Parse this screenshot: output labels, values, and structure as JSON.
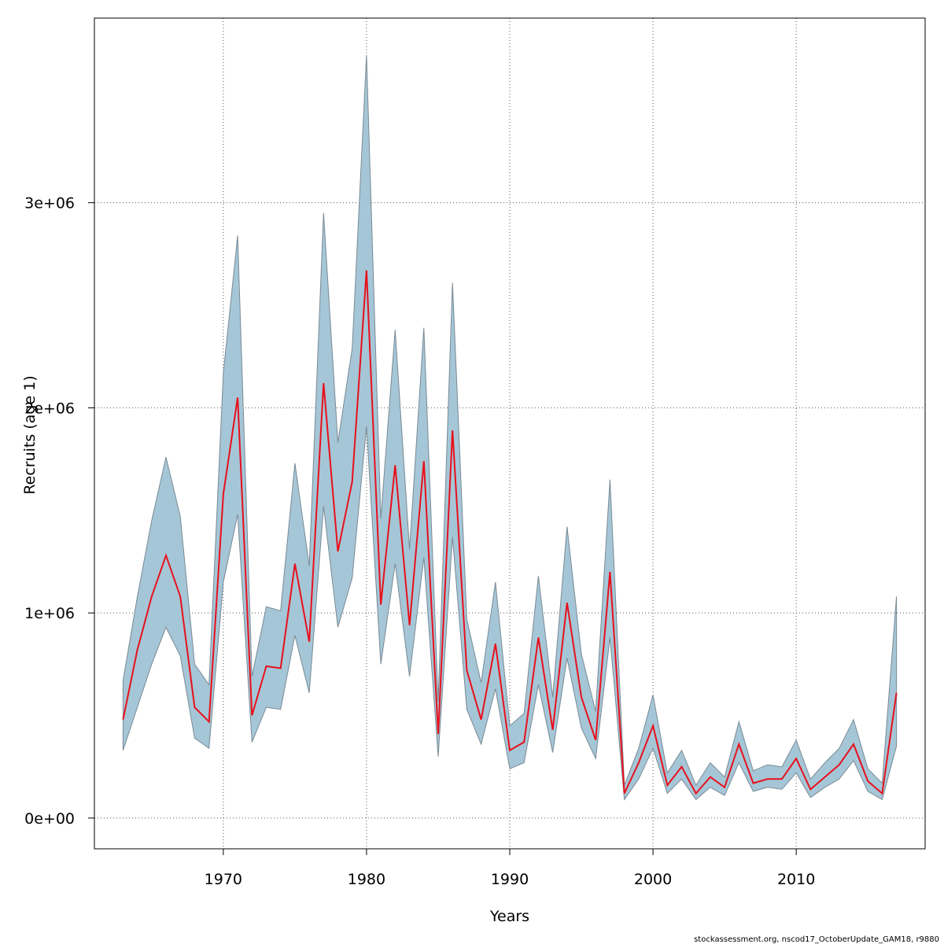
{
  "chart_data": {
    "type": "area",
    "title": "",
    "xlabel": "Years",
    "ylabel": "Recruits (age 1)",
    "footer": "stockassessment.org, nscod17_OctoberUpdate_GAM18, r9880",
    "xlim": [
      1961,
      2019
    ],
    "ylim": [
      -150000,
      3900000
    ],
    "x_ticks": [
      1970,
      1980,
      1990,
      2000,
      2010
    ],
    "y_ticks": [
      0,
      1000000,
      2000000,
      3000000
    ],
    "y_tick_labels": [
      "0e+00",
      "1e+06",
      "2e+06",
      "3e+06"
    ],
    "x_tick_labels": [
      "1970",
      "1980",
      "1990",
      "2000",
      "2010"
    ],
    "grid": true,
    "colors": {
      "band": "#a5c6d7",
      "band_edge": "#7a8a94",
      "line": "#e8101c"
    },
    "x": [
      1963,
      1964,
      1965,
      1966,
      1967,
      1968,
      1969,
      1970,
      1971,
      1972,
      1973,
      1974,
      1975,
      1976,
      1977,
      1978,
      1979,
      1980,
      1981,
      1982,
      1983,
      1984,
      1985,
      1986,
      1987,
      1988,
      1989,
      1990,
      1991,
      1992,
      1993,
      1994,
      1995,
      1996,
      1997,
      1998,
      1999,
      2000,
      2001,
      2002,
      2003,
      2004,
      2005,
      2006,
      2007,
      2008,
      2009,
      2010,
      2011,
      2012,
      2013,
      2014,
      2015,
      2016,
      2017
    ],
    "series": [
      {
        "values": [
          480000,
          820000,
          1080000,
          1280000,
          1080000,
          540000,
          470000,
          1580000,
          2050000,
          500000,
          740000,
          730000,
          1240000,
          860000,
          2120000,
          1300000,
          1640000,
          2670000,
          1040000,
          1720000,
          940000,
          1740000,
          410000,
          1890000,
          720000,
          480000,
          850000,
          330000,
          370000,
          880000,
          430000,
          1050000,
          590000,
          380000,
          1200000,
          120000,
          270000,
          450000,
          160000,
          250000,
          120000,
          200000,
          150000,
          360000,
          170000,
          190000,
          190000,
          290000,
          140000,
          200000,
          260000,
          360000,
          180000,
          120000,
          610000
        ]
      },
      {
        "values": [
          330000,
          540000,
          750000,
          930000,
          790000,
          390000,
          340000,
          1150000,
          1480000,
          370000,
          540000,
          530000,
          890000,
          610000,
          1520000,
          930000,
          1170000,
          1910000,
          750000,
          1240000,
          690000,
          1270000,
          300000,
          1370000,
          530000,
          360000,
          630000,
          240000,
          270000,
          650000,
          320000,
          780000,
          440000,
          290000,
          880000,
          90000,
          190000,
          340000,
          120000,
          190000,
          90000,
          150000,
          110000,
          270000,
          130000,
          150000,
          140000,
          220000,
          100000,
          150000,
          190000,
          280000,
          130000,
          90000,
          350000
        ]
      },
      {
        "values": [
          670000,
          1080000,
          1450000,
          1760000,
          1470000,
          750000,
          650000,
          2170000,
          2840000,
          690000,
          1030000,
          1010000,
          1730000,
          1230000,
          2950000,
          1830000,
          2290000,
          3720000,
          1460000,
          2380000,
          1310000,
          2390000,
          570000,
          2610000,
          970000,
          660000,
          1150000,
          450000,
          510000,
          1180000,
          590000,
          1420000,
          800000,
          520000,
          1650000,
          160000,
          340000,
          600000,
          220000,
          330000,
          160000,
          270000,
          200000,
          470000,
          230000,
          260000,
          250000,
          380000,
          190000,
          270000,
          340000,
          480000,
          240000,
          170000,
          1080000
        ]
      }
    ]
  }
}
